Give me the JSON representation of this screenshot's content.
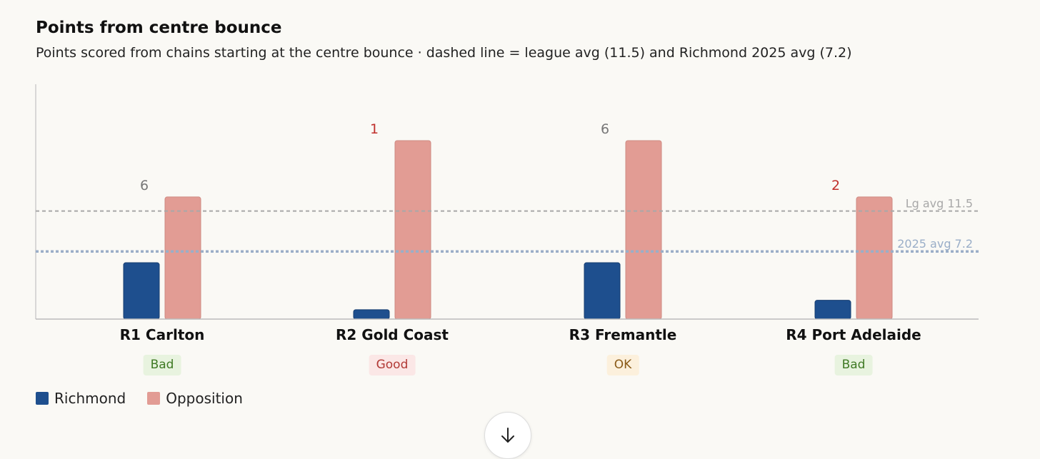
{
  "chart_data": {
    "type": "bar",
    "title": "Points from centre bounce",
    "subtitle": "Points scored from chains starting at the centre bounce · dashed line = league avg (11.5) and Richmond 2025 avg (7.2)",
    "categories": [
      "R1 Carlton",
      "R2 Gold Coast",
      "R3 Fremantle",
      "R4 Port Adelaide"
    ],
    "series": [
      {
        "name": "Richmond",
        "values": [
          6,
          1,
          6,
          2
        ],
        "color": "#1e4f8e"
      },
      {
        "name": "Opposition",
        "values": [
          13,
          19,
          19,
          13
        ],
        "color": "#e29c94"
      }
    ],
    "data_labels": [
      {
        "text": "6",
        "color": "#777777"
      },
      {
        "text": "1",
        "color": "#c0302c"
      },
      {
        "text": "6",
        "color": "#777777"
      },
      {
        "text": "2",
        "color": "#c0302c"
      }
    ],
    "ratings": [
      {
        "text": "Bad",
        "bg": "#e8f3df",
        "color": "#3f7a24"
      },
      {
        "text": "Good",
        "bg": "#fbe7e6",
        "color": "#b23a36"
      },
      {
        "text": "OK",
        "bg": "#fcf0dc",
        "color": "#8a5a17"
      },
      {
        "text": "Bad",
        "bg": "#e8f3df",
        "color": "#3f7a24"
      }
    ],
    "reference_lines": [
      {
        "label": "Lg avg 11.5",
        "value": 11.5,
        "color": "#a8a8a8"
      },
      {
        "label": "2025 avg 7.2",
        "value": 7.2,
        "color": "#9aaec8"
      }
    ],
    "ylim": [
      0,
      25
    ],
    "xlabel": "",
    "ylabel": "",
    "grid": false,
    "legend_position": "bottom-left"
  },
  "legend": [
    {
      "label": "Richmond",
      "color": "#1e4f8e"
    },
    {
      "label": "Opposition",
      "color": "#e29c94"
    }
  ],
  "scroll_icon": "arrow-down-icon"
}
